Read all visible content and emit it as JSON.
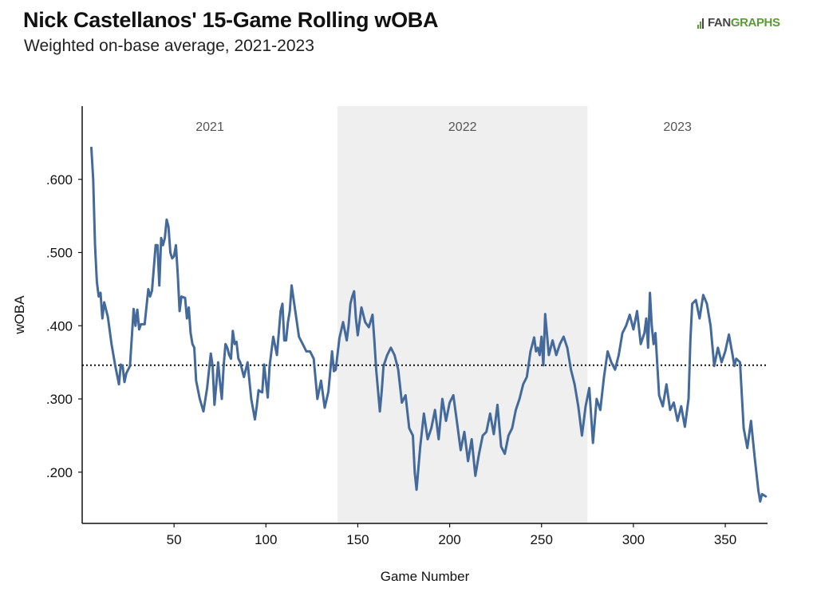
{
  "header": {
    "title": "Nick Castellanos' 15-Game Rolling wOBA",
    "subtitle": "Weighted on-base average, 2021-2023"
  },
  "logo": {
    "fan": "FAN",
    "graphs": "GRAPHS"
  },
  "colors": {
    "line": "#44699b",
    "band": "#efefef",
    "axis": "#111111",
    "logo_green": "#5a9a37"
  },
  "chart_data": {
    "type": "line",
    "title": "Nick Castellanos' 15-Game Rolling wOBA",
    "subtitle": "Weighted on-base average, 2021-2023",
    "xlabel": "Game Number",
    "ylabel": "wOBA",
    "xlim": [
      0,
      373
    ],
    "ylim": [
      0.13,
      0.7
    ],
    "xticks": [
      50,
      100,
      150,
      200,
      250,
      300,
      350
    ],
    "yticks": [
      0.2,
      0.3,
      0.4,
      0.5,
      0.6
    ],
    "ytick_labels": [
      ".200",
      ".300",
      ".400",
      ".500",
      ".600"
    ],
    "grid": false,
    "reference_line": {
      "y": 0.346,
      "style": "dotted"
    },
    "season_bands": [
      {
        "label": "2021",
        "x_start": 0,
        "x_end": 139,
        "shaded": false
      },
      {
        "label": "2022",
        "x_start": 139,
        "x_end": 275,
        "shaded": true
      },
      {
        "label": "2023",
        "x_start": 275,
        "x_end": 373,
        "shaded": false
      }
    ],
    "series": [
      {
        "x": [
          5,
          6,
          7,
          8,
          9,
          10,
          11,
          12,
          14,
          16,
          18,
          20,
          21,
          22,
          23,
          24,
          26,
          28,
          29,
          30,
          31,
          32,
          34,
          36,
          37,
          38,
          40,
          41,
          42,
          43,
          44,
          45,
          46,
          47,
          48,
          49,
          50,
          51,
          52,
          53,
          54,
          56,
          57,
          58,
          59,
          60,
          61,
          62,
          64,
          66,
          68,
          70,
          71,
          72,
          73,
          74,
          75,
          76,
          77,
          78,
          79,
          80,
          81,
          82,
          83,
          84,
          85,
          86,
          88,
          90,
          92,
          94,
          95,
          96,
          97,
          98,
          99,
          100,
          101,
          102,
          104,
          106,
          108,
          109,
          110,
          111,
          112,
          113,
          114,
          116,
          118,
          120,
          122,
          124,
          126,
          128,
          130,
          132,
          134,
          136,
          137,
          138,
          140,
          142,
          144,
          145,
          146,
          147,
          148,
          149,
          150,
          152,
          154,
          156,
          158,
          159,
          160,
          162,
          163,
          164,
          166,
          168,
          170,
          172,
          174,
          176,
          178,
          180,
          181,
          182,
          184,
          186,
          188,
          190,
          192,
          194,
          196,
          198,
          200,
          202,
          204,
          206,
          208,
          210,
          212,
          214,
          216,
          218,
          220,
          222,
          224,
          226,
          228,
          230,
          232,
          234,
          236,
          238,
          240,
          242,
          244,
          246,
          247,
          248,
          249,
          250,
          251,
          252,
          254,
          256,
          258,
          260,
          262,
          264,
          266,
          268,
          270,
          272,
          274,
          276,
          278,
          280,
          282,
          284,
          286,
          288,
          290,
          292,
          294,
          296,
          298,
          300,
          302,
          304,
          306,
          307,
          308,
          309,
          310,
          311,
          312,
          314,
          316,
          318,
          320,
          322,
          324,
          326,
          328,
          330,
          331,
          332,
          334,
          336,
          338,
          340,
          342,
          344,
          346,
          348,
          350,
          352,
          354,
          355,
          356,
          358,
          360,
          362,
          364,
          366,
          368,
          369,
          370,
          372
        ],
        "y": [
          0.643,
          0.6,
          0.51,
          0.46,
          0.44,
          0.445,
          0.41,
          0.432,
          0.412,
          0.375,
          0.345,
          0.32,
          0.347,
          0.345,
          0.323,
          0.335,
          0.345,
          0.423,
          0.4,
          0.422,
          0.395,
          0.402,
          0.402,
          0.45,
          0.44,
          0.448,
          0.51,
          0.51,
          0.455,
          0.52,
          0.51,
          0.52,
          0.545,
          0.535,
          0.5,
          0.492,
          0.495,
          0.51,
          0.47,
          0.42,
          0.44,
          0.438,
          0.41,
          0.425,
          0.39,
          0.375,
          0.37,
          0.325,
          0.3,
          0.283,
          0.315,
          0.362,
          0.345,
          0.292,
          0.32,
          0.35,
          0.323,
          0.3,
          0.345,
          0.375,
          0.37,
          0.36,
          0.355,
          0.393,
          0.375,
          0.378,
          0.355,
          0.35,
          0.33,
          0.35,
          0.3,
          0.272,
          0.29,
          0.312,
          0.31,
          0.309,
          0.347,
          0.325,
          0.302,
          0.345,
          0.385,
          0.36,
          0.42,
          0.43,
          0.38,
          0.38,
          0.405,
          0.42,
          0.455,
          0.42,
          0.385,
          0.375,
          0.365,
          0.365,
          0.355,
          0.3,
          0.325,
          0.288,
          0.31,
          0.365,
          0.338,
          0.34,
          0.383,
          0.405,
          0.38,
          0.4,
          0.43,
          0.44,
          0.447,
          0.41,
          0.387,
          0.425,
          0.405,
          0.398,
          0.415,
          0.38,
          0.34,
          0.283,
          0.31,
          0.345,
          0.36,
          0.37,
          0.36,
          0.34,
          0.295,
          0.305,
          0.26,
          0.25,
          0.2,
          0.176,
          0.235,
          0.28,
          0.245,
          0.26,
          0.285,
          0.245,
          0.3,
          0.27,
          0.295,
          0.305,
          0.268,
          0.23,
          0.255,
          0.215,
          0.245,
          0.195,
          0.225,
          0.25,
          0.255,
          0.28,
          0.252,
          0.292,
          0.235,
          0.225,
          0.25,
          0.26,
          0.285,
          0.3,
          0.32,
          0.33,
          0.365,
          0.384,
          0.365,
          0.37,
          0.36,
          0.385,
          0.346,
          0.416,
          0.36,
          0.38,
          0.36,
          0.375,
          0.385,
          0.37,
          0.34,
          0.32,
          0.29,
          0.25,
          0.29,
          0.315,
          0.24,
          0.3,
          0.285,
          0.33,
          0.365,
          0.35,
          0.34,
          0.36,
          0.39,
          0.4,
          0.415,
          0.395,
          0.42,
          0.375,
          0.39,
          0.41,
          0.37,
          0.445,
          0.4,
          0.375,
          0.39,
          0.305,
          0.29,
          0.32,
          0.285,
          0.295,
          0.27,
          0.29,
          0.262,
          0.3,
          0.38,
          0.43,
          0.435,
          0.41,
          0.442,
          0.43,
          0.4,
          0.345,
          0.37,
          0.35,
          0.365,
          0.388,
          0.36,
          0.345,
          0.355,
          0.35,
          0.26,
          0.233,
          0.27,
          0.22,
          0.175,
          0.16,
          0.17,
          0.167
        ]
      }
    ]
  }
}
